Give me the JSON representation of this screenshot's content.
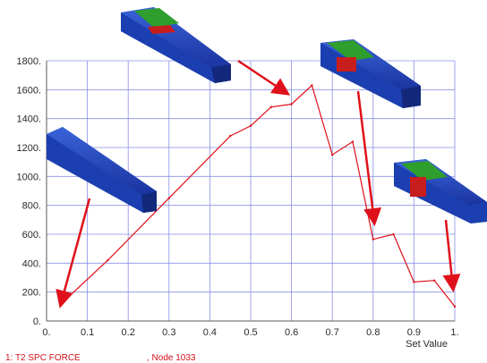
{
  "chart_data": {
    "type": "line",
    "title": "",
    "xlabel": "Set Value",
    "ylabel": "",
    "xlim": [
      0,
      1
    ],
    "ylim": [
      0,
      1800
    ],
    "grid": true,
    "x_ticks": [
      "0.",
      "0.1",
      "0.2",
      "0.3",
      "0.4",
      "0.5",
      "0.6",
      "0.7",
      "0.8",
      "0.9",
      "1."
    ],
    "y_ticks": [
      "0.",
      "200.",
      "400.",
      "600.",
      "800.",
      "1000.",
      "1200.",
      "1400.",
      "1600.",
      "1800."
    ],
    "legend_position": "bottom-left",
    "series": [
      {
        "name": "1: T2 SPC FORCE",
        "color": "#e0101a",
        "x": [
          0.04,
          0.15,
          0.3,
          0.45,
          0.5,
          0.55,
          0.6,
          0.65,
          0.7,
          0.75,
          0.8,
          0.85,
          0.9,
          0.95,
          1.0
        ],
        "y": [
          130,
          420,
          850,
          1280,
          1350,
          1480,
          1500,
          1630,
          1150,
          1240,
          565,
          600,
          270,
          280,
          100
        ]
      }
    ],
    "legend_suffix": ", Node 1033"
  },
  "colors": {
    "grid": "#8a8fe6",
    "axis": "#5a5a5a",
    "line": "#e0101a",
    "arrow": "#e0101a",
    "beam_blue": "#1b3fb0",
    "beam_green": "#2e9e2c",
    "beam_red": "#c81d1d"
  }
}
